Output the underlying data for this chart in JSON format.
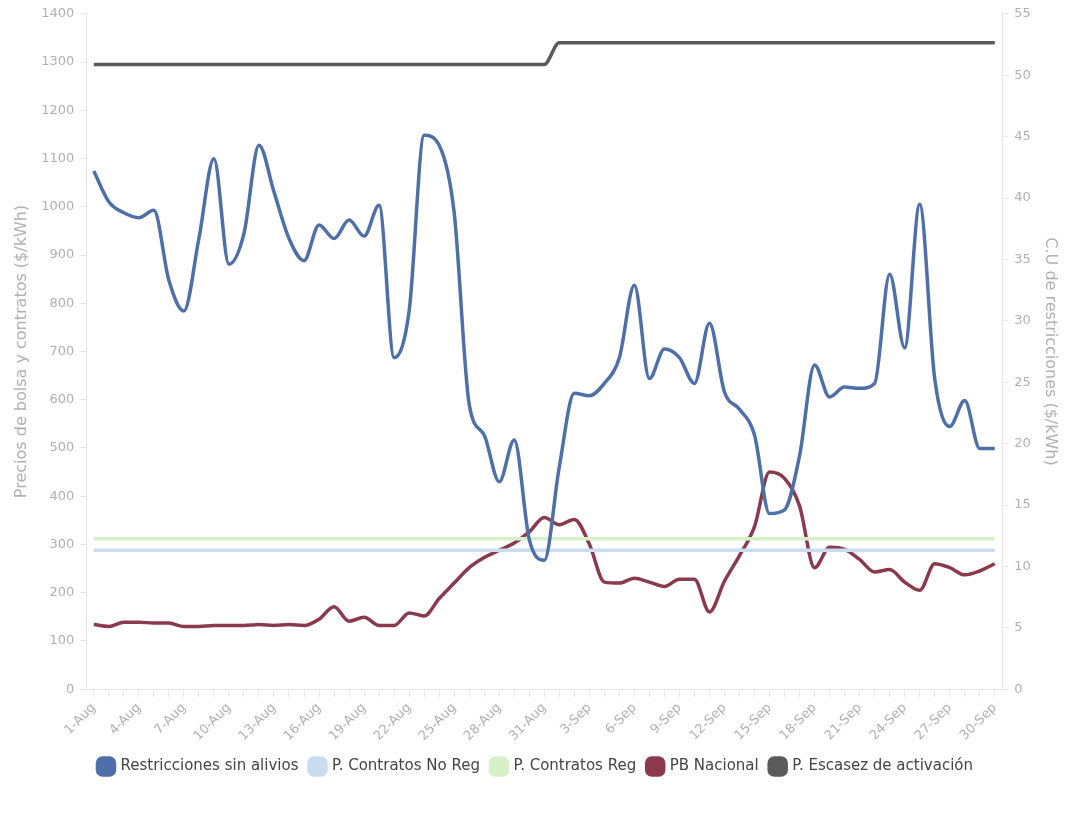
{
  "chart_data": {
    "type": "line",
    "ylabel": "Precios de bolsa y contratos ($/kWh)",
    "y2label": "C.U de restricciones ($/kWh)",
    "categories": [
      "1-Aug",
      null,
      null,
      "4-Aug",
      null,
      null,
      "7-Aug",
      null,
      null,
      "10-Aug",
      null,
      null,
      "13-Aug",
      null,
      null,
      "16-Aug",
      null,
      null,
      "19-Aug",
      null,
      null,
      "22-Aug",
      null,
      null,
      "25-Aug",
      null,
      null,
      "28-Aug",
      null,
      null,
      "31-Aug",
      null,
      null,
      "3-Sep",
      null,
      null,
      "6-Sep",
      null,
      null,
      "9-Sep",
      null,
      null,
      "12-Sep",
      null,
      null,
      "15-Sep",
      null,
      null,
      "18-Sep",
      null,
      null,
      "21-Sep",
      null,
      null,
      "24-Sep",
      null,
      null,
      "27-Sep",
      null,
      null,
      "30-Sep"
    ],
    "ylim": [
      0,
      1400
    ],
    "yticks": [
      0,
      100,
      200,
      300,
      400,
      500,
      600,
      700,
      800,
      900,
      1000,
      1100,
      1200,
      1300,
      1400
    ],
    "y2lim": [
      0,
      55
    ],
    "y2ticks": [
      0,
      5,
      10,
      15,
      20,
      25,
      30,
      35,
      40,
      45,
      50,
      55
    ],
    "grid": false,
    "legend": "bottom",
    "marker": "none",
    "series": [
      {
        "name": "Restricciones sin alivios",
        "color": "#4e6fa8",
        "axis": "y2",
        "values": [
          42.2,
          39.7,
          38.8,
          38.4,
          39.0,
          33.3,
          30.8,
          36.7,
          43.2,
          34.6,
          37.1,
          44.3,
          40.5,
          36.7,
          34.9,
          37.8,
          36.7,
          38.2,
          36.9,
          39.4,
          27.0,
          30.8,
          45.1,
          44.3,
          38.8,
          23.2,
          20.7,
          16.9,
          20.3,
          12.2,
          10.5,
          18.1,
          24.1,
          23.9,
          24.9,
          27.0,
          32.9,
          25.3,
          27.7,
          27.0,
          24.9,
          29.8,
          24.2,
          22.8,
          20.7,
          14.3,
          14.6,
          19.0,
          26.4,
          23.8,
          24.6,
          24.5,
          24.9,
          33.8,
          27.8,
          39.5,
          25.3,
          21.4,
          23.5,
          19.6,
          19.6
        ]
      },
      {
        "name": "P. Contratos No Reg",
        "color": "#c9dcf0",
        "values": [
          288,
          288,
          288,
          288,
          288,
          288,
          288,
          288,
          288,
          288,
          288,
          288,
          288,
          288,
          288,
          288,
          288,
          288,
          288,
          288,
          288,
          288,
          288,
          288,
          288,
          288,
          288,
          288,
          288,
          288,
          288,
          288,
          288,
          288,
          288,
          288,
          288,
          288,
          288,
          288,
          288,
          288,
          288,
          288,
          288,
          288,
          288,
          288,
          288,
          288,
          288,
          288,
          288,
          288,
          288,
          288,
          288,
          288,
          288,
          288,
          288
        ]
      },
      {
        "name": "P. Contratos Reg",
        "color": "#d6f0c8",
        "values": [
          312,
          312,
          312,
          312,
          312,
          312,
          312,
          312,
          312,
          312,
          312,
          312,
          312,
          312,
          312,
          312,
          312,
          312,
          312,
          312,
          312,
          312,
          312,
          312,
          312,
          312,
          312,
          312,
          312,
          312,
          312,
          312,
          312,
          312,
          312,
          312,
          312,
          312,
          312,
          312,
          312,
          312,
          312,
          312,
          312,
          312,
          312,
          312,
          312,
          312,
          312,
          312,
          312,
          312,
          312,
          312,
          312,
          312,
          312,
          312,
          312
        ]
      },
      {
        "name": "PB Nacional",
        "color": "#8a3a4c",
        "values": [
          134,
          130,
          139,
          139,
          137,
          137,
          130,
          130,
          132,
          132,
          132,
          134,
          132,
          134,
          132,
          145,
          171,
          141,
          149,
          132,
          132,
          158,
          152,
          188,
          220,
          252,
          273,
          288,
          303,
          326,
          356,
          341,
          352,
          301,
          222,
          220,
          230,
          222,
          213,
          228,
          228,
          160,
          224,
          277,
          337,
          450,
          437,
          380,
          252,
          294,
          290,
          269,
          243,
          248,
          222,
          205,
          260,
          252,
          237,
          245,
          260
        ]
      },
      {
        "name": "P. Escasez de activación",
        "color": "#5a5a5a",
        "values": [
          1295,
          1295,
          1295,
          1295,
          1295,
          1295,
          1295,
          1295,
          1295,
          1295,
          1295,
          1295,
          1295,
          1295,
          1295,
          1295,
          1295,
          1295,
          1295,
          1295,
          1295,
          1295,
          1295,
          1295,
          1295,
          1295,
          1295,
          1295,
          1295,
          1295,
          1295,
          1340,
          1340,
          1340,
          1340,
          1340,
          1340,
          1340,
          1340,
          1340,
          1340,
          1340,
          1340,
          1340,
          1340,
          1340,
          1340,
          1340,
          1340,
          1340,
          1340,
          1340,
          1340,
          1340,
          1340,
          1340,
          1340,
          1340,
          1340,
          1340,
          1340
        ]
      }
    ]
  }
}
